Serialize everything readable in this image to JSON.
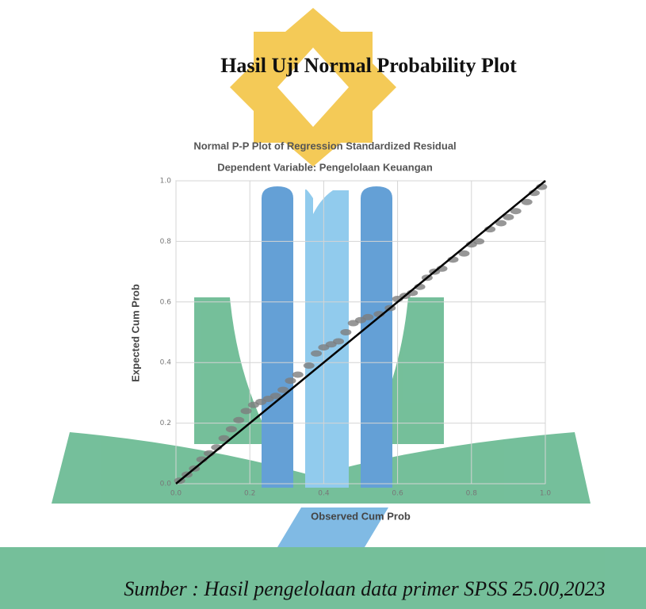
{
  "heading": "Hasil Uji Normal Probability Plot",
  "caption": "Sumber : Hasil pengelolaan data primer SPSS 25.00,2023",
  "chart_data": {
    "type": "scatter",
    "title": "Normal P-P Plot of Regression Standardized Residual",
    "subtitle": "Dependent Variable: Pengelolaan Keuangan",
    "x_label": "Observed Cum Prob",
    "y_label": "Expected Cum Prob",
    "xlim": [
      0,
      1
    ],
    "ylim": [
      0,
      1
    ],
    "xticks": [
      {
        "value": 0,
        "label": "0.0"
      },
      0.2,
      0.4,
      0.6,
      0.8,
      {
        "value": 1,
        "label": "1.0"
      }
    ],
    "yticks": [
      {
        "value": 0,
        "label": "0.0"
      },
      0.2,
      0.4,
      0.6,
      0.8,
      {
        "value": 1,
        "label": "1.0"
      }
    ],
    "grid": true,
    "series": [
      {
        "color": "#7d7d7d",
        "x": [
          0.01,
          0.03,
          0.05,
          0.07,
          0.09,
          0.11,
          0.13,
          0.15,
          0.17,
          0.19,
          0.21,
          0.23,
          0.25,
          0.27,
          0.29,
          0.31,
          0.33,
          0.36,
          0.38,
          0.4,
          0.42,
          0.44,
          0.46,
          0.48,
          0.5,
          0.52,
          0.55,
          0.58,
          0.6,
          0.62,
          0.64,
          0.66,
          0.68,
          0.7,
          0.72,
          0.75,
          0.78,
          0.8,
          0.82,
          0.85,
          0.88,
          0.9,
          0.92,
          0.95,
          0.97,
          0.99
        ],
        "values": [
          0.01,
          0.03,
          0.05,
          0.08,
          0.1,
          0.12,
          0.15,
          0.18,
          0.21,
          0.24,
          0.26,
          0.27,
          0.28,
          0.29,
          0.31,
          0.34,
          0.36,
          0.39,
          0.43,
          0.45,
          0.46,
          0.47,
          0.5,
          0.53,
          0.54,
          0.55,
          0.56,
          0.58,
          0.61,
          0.62,
          0.63,
          0.65,
          0.68,
          0.7,
          0.71,
          0.74,
          0.76,
          0.79,
          0.8,
          0.84,
          0.86,
          0.88,
          0.9,
          0.93,
          0.96,
          0.98
        ]
      },
      {
        "type": "line",
        "color": "#000000",
        "x": [
          0,
          1
        ],
        "values": [
          0,
          1
        ]
      }
    ]
  }
}
